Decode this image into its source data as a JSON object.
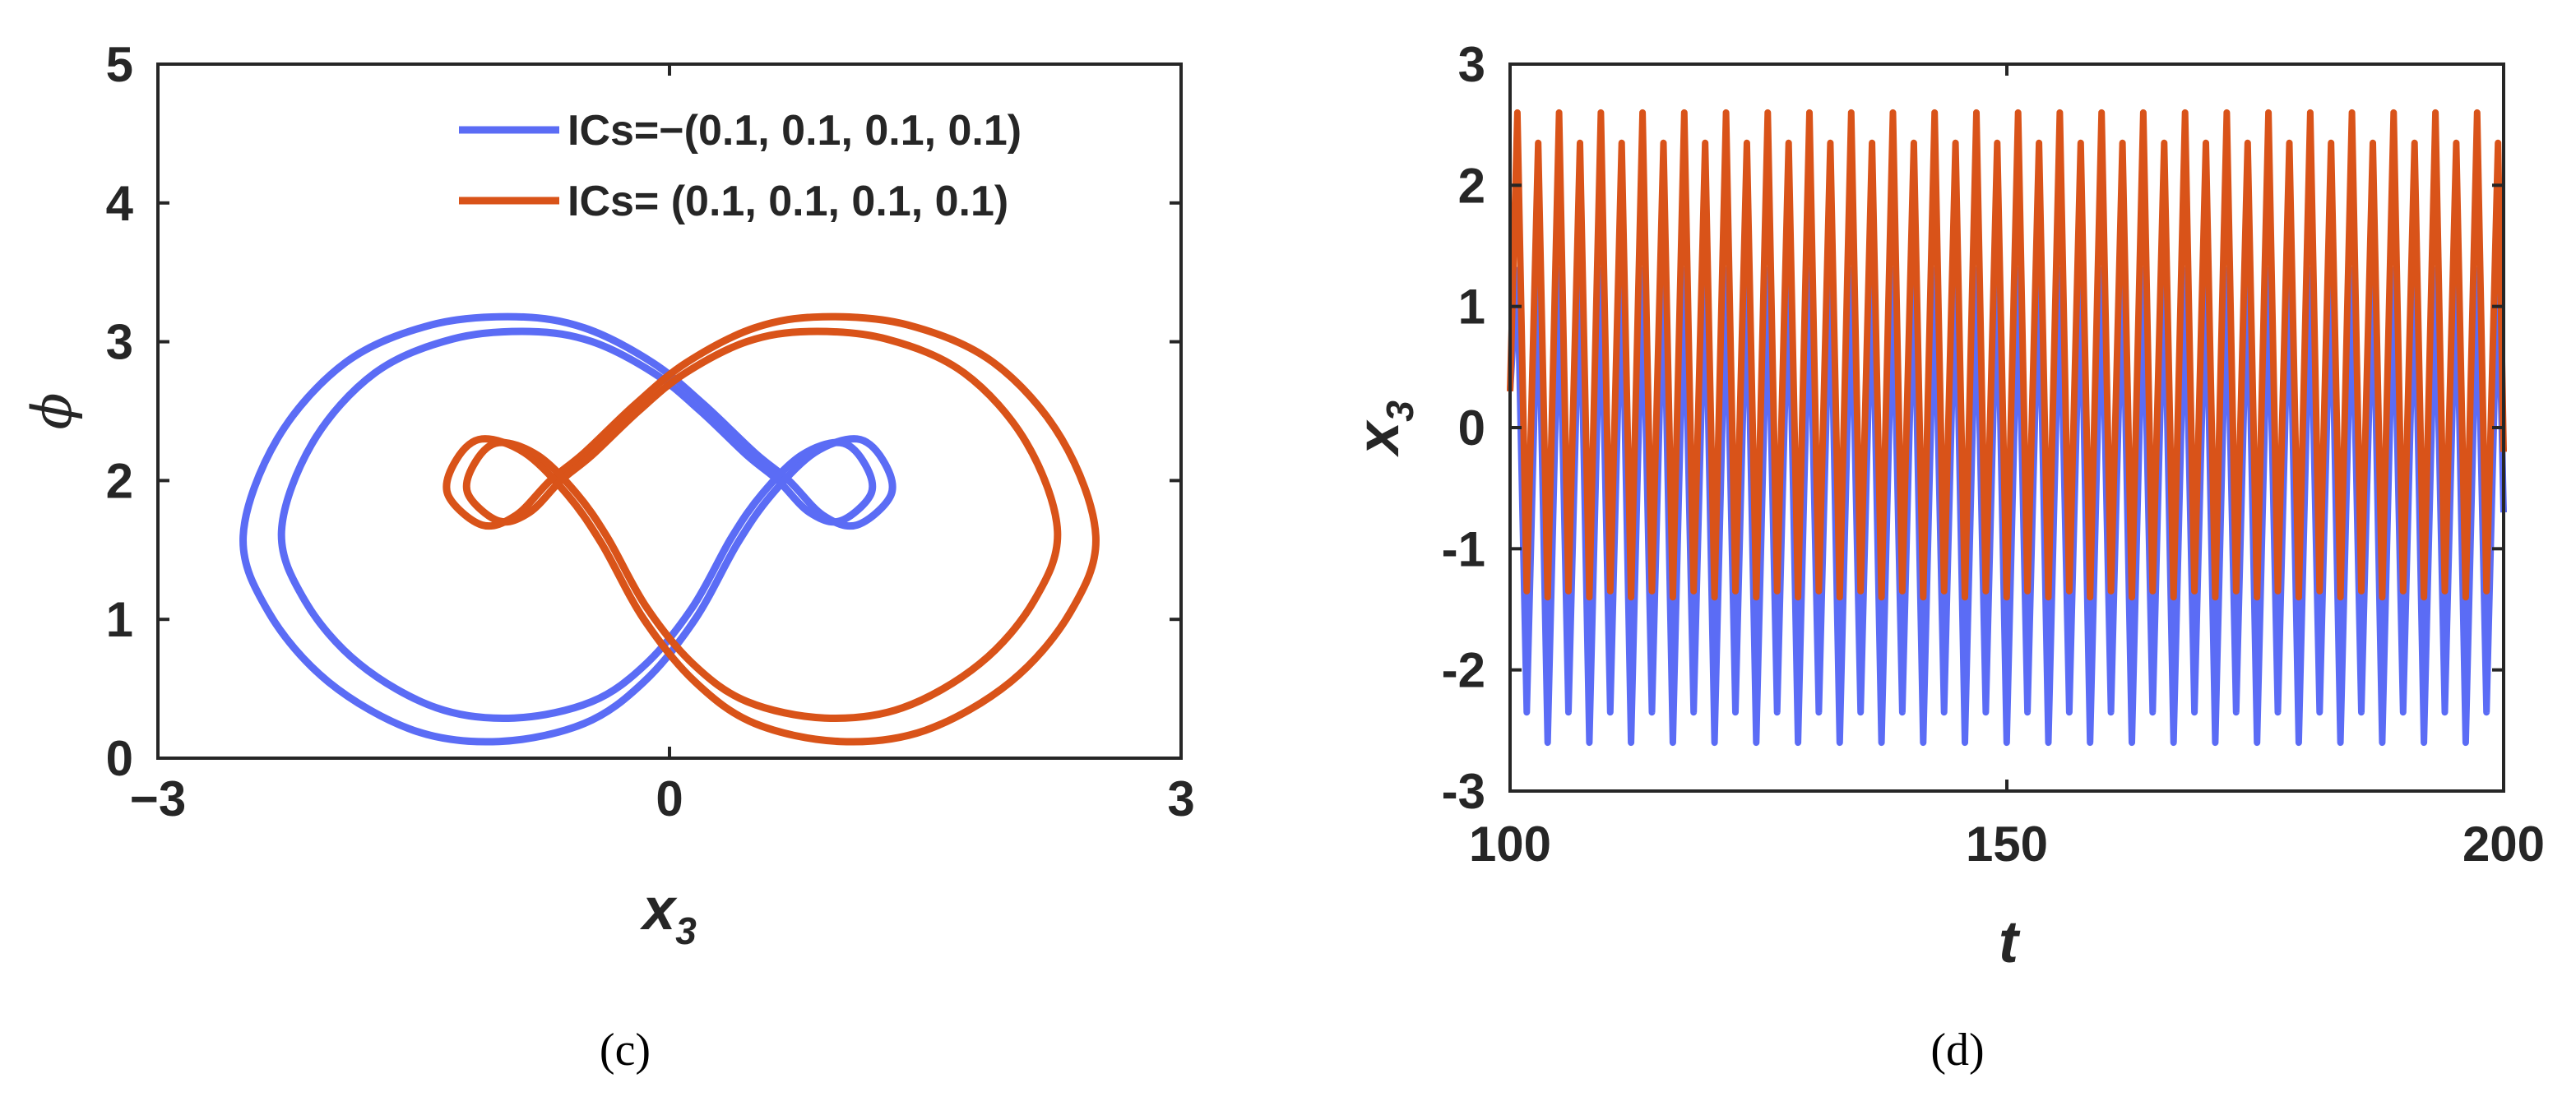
{
  "chart_data": [
    {
      "type": "line",
      "panel_label": "(c)",
      "xlabel": "x",
      "xlabel_sub": "3",
      "ylabel": "ϕ",
      "xlim": [
        -3,
        3
      ],
      "ylim": [
        0,
        5
      ],
      "xticks": [
        -3,
        0,
        3
      ],
      "xtick_labels": [
        "−3",
        "0",
        "3"
      ],
      "yticks": [
        0,
        1,
        2,
        3,
        4,
        5
      ],
      "ytick_labels": [
        "0",
        "1",
        "2",
        "3",
        "4",
        "5"
      ],
      "grid": false,
      "legend_position": "top-right",
      "series": [
        {
          "name": "ICs=−(0.1, 0.1, 0.1, 0.1)",
          "color": "#5B6CF5",
          "x": [
            -2.5,
            -2.3,
            -1.9,
            -1.4,
            -0.9,
            -0.5,
            -0.1,
            0.2,
            0.5,
            0.7,
            0.9,
            1.1,
            1.3,
            1.25,
            1.1,
            0.85,
            0.6,
            0.4,
            0.15,
            -0.15,
            -0.5,
            -1.0,
            -1.5,
            -2.0,
            -2.35,
            -2.5
          ],
          "y": [
            1.6,
            2.3,
            2.85,
            3.12,
            3.18,
            3.1,
            2.85,
            2.55,
            2.2,
            2.0,
            1.75,
            1.68,
            1.9,
            2.15,
            2.3,
            2.2,
            1.9,
            1.55,
            1.0,
            0.55,
            0.25,
            0.12,
            0.2,
            0.55,
            1.05,
            1.6
          ]
        },
        {
          "name": "ICs= (0.1, 0.1, 0.1, 0.1)",
          "color": "#D95319",
          "x": [
            2.5,
            2.3,
            1.9,
            1.4,
            0.9,
            0.5,
            0.1,
            -0.2,
            -0.5,
            -0.7,
            -0.9,
            -1.1,
            -1.3,
            -1.25,
            -1.1,
            -0.85,
            -0.6,
            -0.4,
            -0.15,
            0.15,
            0.5,
            1.0,
            1.5,
            2.0,
            2.35,
            2.5
          ],
          "y": [
            1.6,
            2.3,
            2.85,
            3.12,
            3.18,
            3.1,
            2.85,
            2.55,
            2.2,
            2.0,
            1.75,
            1.68,
            1.9,
            2.15,
            2.3,
            2.2,
            1.9,
            1.55,
            1.0,
            0.55,
            0.25,
            0.12,
            0.2,
            0.55,
            1.05,
            1.6
          ]
        }
      ]
    },
    {
      "type": "line",
      "panel_label": "(d)",
      "xlabel": "t",
      "ylabel": "x",
      "ylabel_sub": "3",
      "xlim": [
        100,
        200
      ],
      "ylim": [
        -3,
        3
      ],
      "xticks": [
        100,
        150,
        200
      ],
      "xtick_labels": [
        "100",
        "150",
        "200"
      ],
      "yticks": [
        -3,
        -2,
        -1,
        0,
        1,
        2,
        3
      ],
      "ytick_labels": [
        "-3",
        "-2",
        "-1",
        "0",
        "1",
        "2",
        "3"
      ],
      "grid": false,
      "series": [
        {
          "name": "ICs=−(0.1, 0.1, 0.1, 0.1)",
          "color": "#5B6CF5",
          "period": 2.1,
          "peaks": [
            1.3,
            1.4
          ],
          "troughs": [
            -2.35,
            -2.6
          ],
          "start": [
            100,
            0.3
          ],
          "end": [
            200,
            -0.7
          ]
        },
        {
          "name": "ICs= (0.1, 0.1, 0.1, 0.1)",
          "color": "#D95319",
          "period": 2.1,
          "peaks": [
            2.6,
            2.35
          ],
          "troughs": [
            -1.35,
            -1.4
          ],
          "start": [
            100,
            0.3
          ],
          "end": [
            200,
            -0.2
          ]
        }
      ]
    }
  ]
}
